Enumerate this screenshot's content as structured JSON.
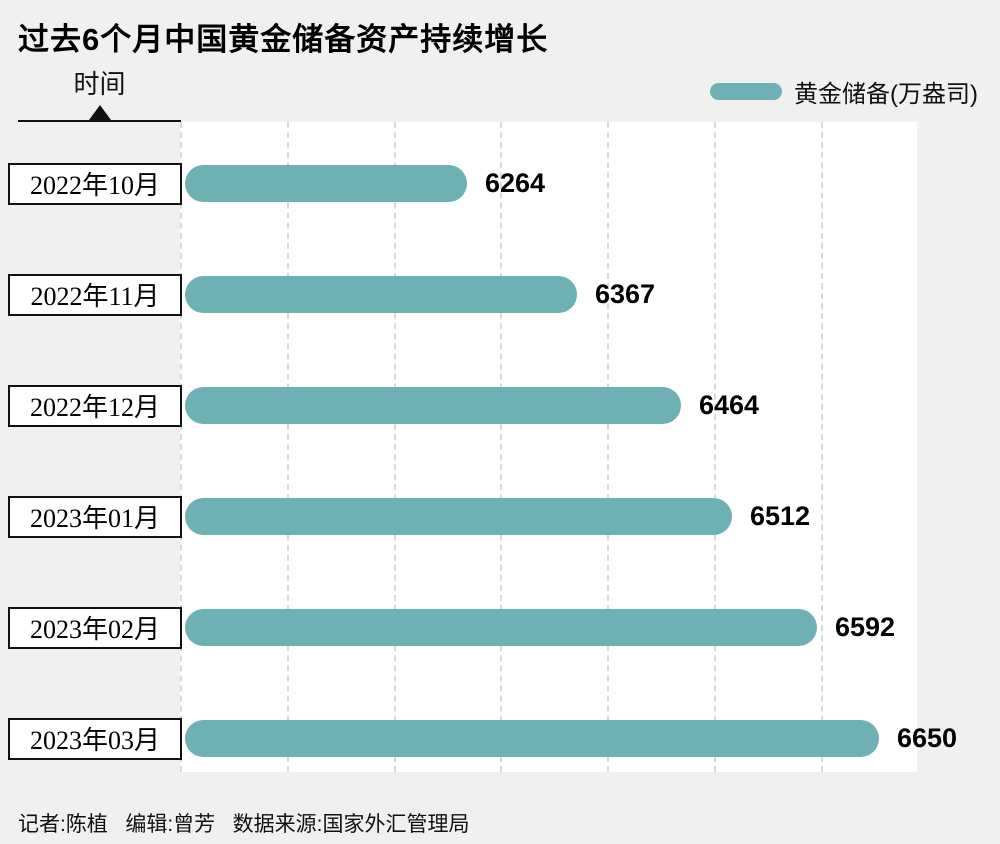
{
  "title": "过去6个月中国黄金储备资产持续增长",
  "axis": {
    "label": "时间"
  },
  "legend": {
    "label": "黄金储备(万盎司)",
    "color": "#6eb1b5"
  },
  "footer": "记者:陈植   编辑:曾芳   数据来源:国家外汇管理局",
  "chart_data": {
    "type": "bar",
    "orientation": "horizontal",
    "title": "过去6个月中国黄金储备资产持续增长",
    "ylabel": "时间",
    "legend": "黄金储备(万盎司)",
    "legend_position": "top-right",
    "categories": [
      "2022年10月",
      "2022年11月",
      "2022年12月",
      "2023年01月",
      "2023年02月",
      "2023年03月"
    ],
    "values": [
      6264,
      6367,
      6464,
      6512,
      6592,
      6650
    ],
    "xlim": [
      6000,
      6690
    ],
    "grid": "dashed-vertical",
    "grid_step": 100,
    "bar_color": "#6eb1b5"
  }
}
